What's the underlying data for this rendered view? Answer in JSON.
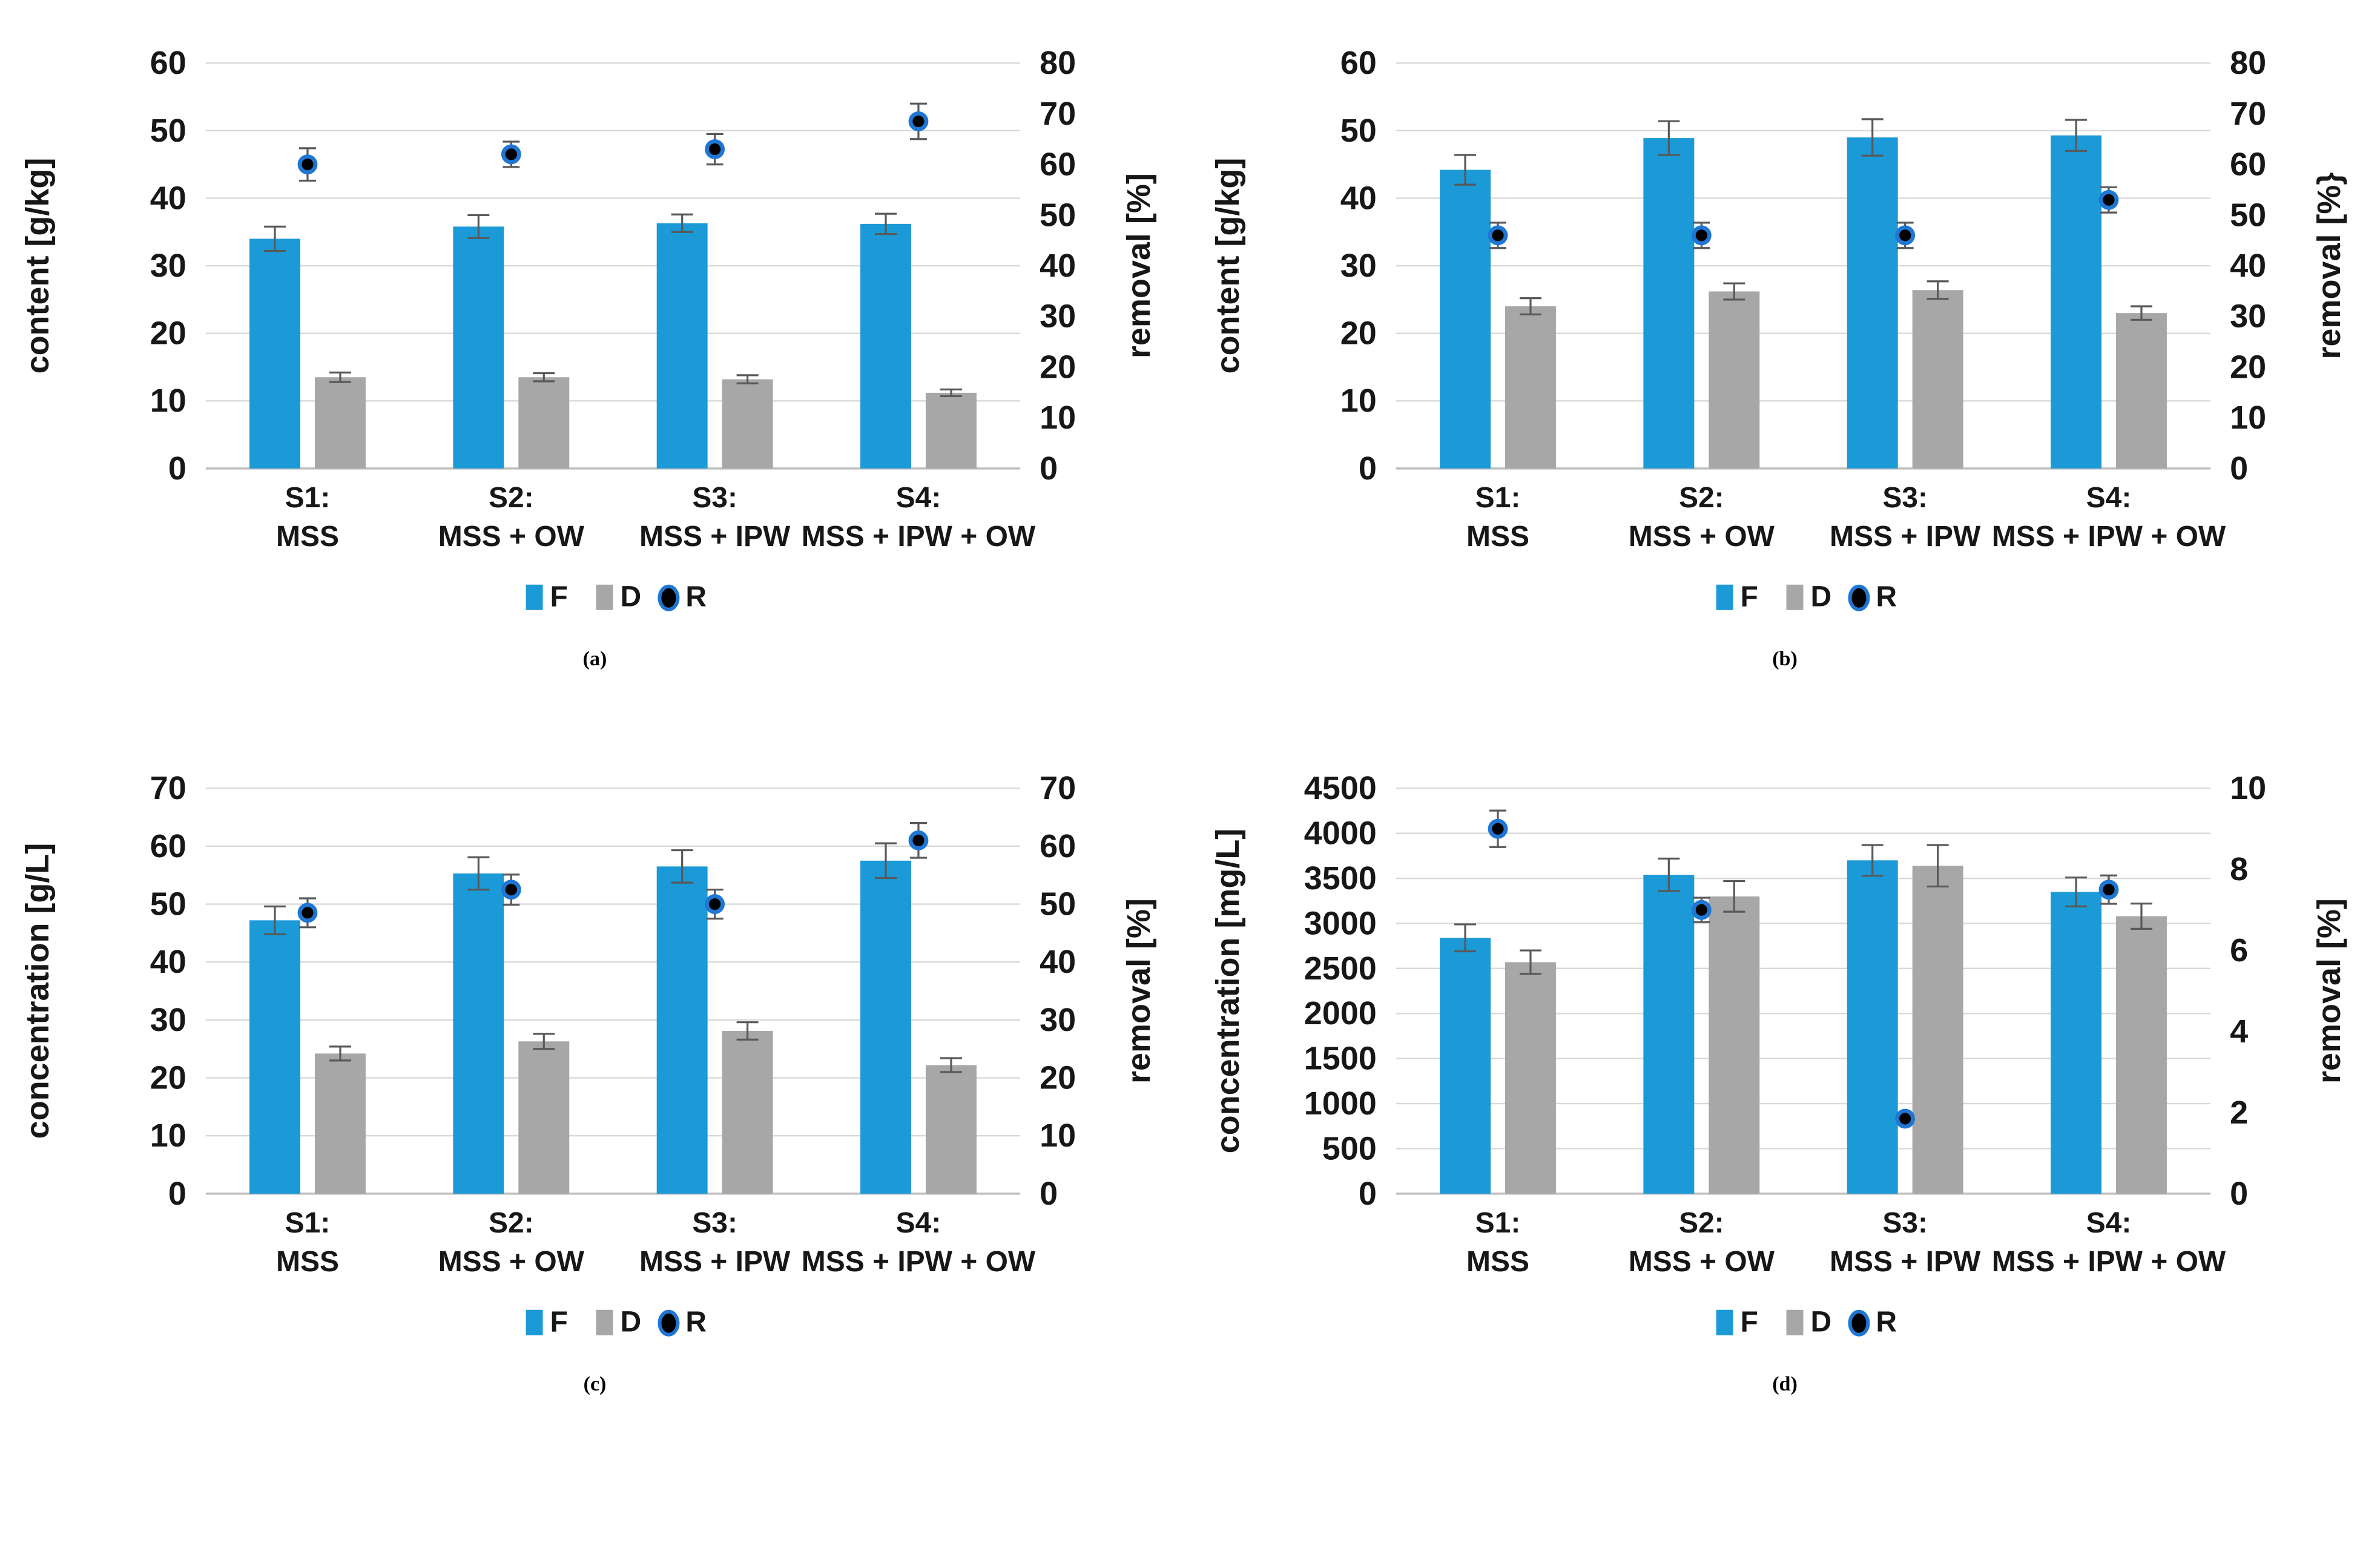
{
  "colors": {
    "bar_f": "#1B9AD7",
    "bar_d": "#A7A7A7",
    "dot_fill": "#000000",
    "dot_ring": "#1F76D3",
    "error_bar": "#595959",
    "gridline": "#D9D9D9",
    "baseline": "#BFBFBF",
    "text": "#171717"
  },
  "legend": {
    "items": [
      {
        "label": "F",
        "marker": "square-blue"
      },
      {
        "label": "D",
        "marker": "square-gray"
      },
      {
        "label": "R",
        "marker": "dot-black-blue-ring"
      }
    ]
  },
  "chart_data": [
    {
      "id": "a",
      "caption": "(a)",
      "type": "bar",
      "subtype": "grouped bars + scatter dots on secondary axis, with error bars",
      "categories": [
        "S1: MSS",
        "S2: MSS + OW",
        "S3: MSS + IPW",
        "S4: MSS + IPW + OW"
      ],
      "category_lines": [
        [
          "S1:",
          "MSS"
        ],
        [
          "S2:",
          "MSS + OW"
        ],
        [
          "S3:",
          "MSS + IPW"
        ],
        [
          "S4:",
          "MSS + IPW + OW"
        ]
      ],
      "left_axis": {
        "label": "content [g/kg]",
        "min": 0,
        "max": 60,
        "step": 10
      },
      "right_axis": {
        "label": "removal [%]",
        "min": 0,
        "max": 80,
        "step": 10
      },
      "series": [
        {
          "name": "F",
          "type": "bar",
          "axis": "left",
          "values": [
            34.0,
            35.8,
            36.3,
            36.2
          ],
          "errors": [
            1.8,
            1.7,
            1.3,
            1.5
          ]
        },
        {
          "name": "D",
          "type": "bar",
          "axis": "left",
          "values": [
            13.5,
            13.5,
            13.2,
            11.2
          ],
          "errors": [
            0.7,
            0.6,
            0.6,
            0.5
          ]
        },
        {
          "name": "R",
          "type": "scatter",
          "axis": "right",
          "values": [
            60.0,
            62.0,
            63.0,
            68.5
          ],
          "errors": [
            3.2,
            2.5,
            3.0,
            3.5
          ]
        }
      ]
    },
    {
      "id": "b",
      "caption": "(b)",
      "type": "bar",
      "subtype": "grouped bars + scatter dots on secondary axis, with error bars",
      "categories": [
        "S1: MSS",
        "S2: MSS + OW",
        "S3: MSS + IPW",
        "S4: MSS + IPW + OW"
      ],
      "category_lines": [
        [
          "S1:",
          "MSS"
        ],
        [
          "S2:",
          "MSS + OW"
        ],
        [
          "S3:",
          "MSS + IPW"
        ],
        [
          "S4:",
          "MSS + IPW + OW"
        ]
      ],
      "left_axis": {
        "label": "content [g/kg]",
        "min": 0,
        "max": 60,
        "step": 10
      },
      "right_axis": {
        "label": "removal [%}",
        "min": 0,
        "max": 80,
        "step": 10
      },
      "series": [
        {
          "name": "F",
          "type": "bar",
          "axis": "left",
          "values": [
            44.2,
            48.9,
            49.0,
            49.3
          ],
          "errors": [
            2.2,
            2.5,
            2.7,
            2.3
          ]
        },
        {
          "name": "D",
          "type": "bar",
          "axis": "left",
          "values": [
            24.0,
            26.2,
            26.4,
            23.0
          ],
          "errors": [
            1.2,
            1.2,
            1.3,
            1.0
          ]
        },
        {
          "name": "R",
          "type": "scatter",
          "axis": "right",
          "values": [
            46.0,
            46.0,
            46.0,
            53.0
          ],
          "errors": [
            2.5,
            2.5,
            2.5,
            2.5
          ]
        }
      ]
    },
    {
      "id": "c",
      "caption": "(c)",
      "type": "bar",
      "subtype": "grouped bars + scatter dots on secondary axis, with error bars",
      "categories": [
        "S1: MSS",
        "S2: MSS + OW",
        "S3: MSS + IPW",
        "S4: MSS + IPW + OW"
      ],
      "category_lines": [
        [
          "S1:",
          "MSS"
        ],
        [
          "S2:",
          "MSS + OW"
        ],
        [
          "S3:",
          "MSS + IPW"
        ],
        [
          "S4:",
          "MSS + IPW + OW"
        ]
      ],
      "left_axis": {
        "label": "concentration [g/L]",
        "min": 0,
        "max": 70,
        "step": 10
      },
      "right_axis": {
        "label": "removal [%]",
        "min": 0,
        "max": 70,
        "step": 10
      },
      "series": [
        {
          "name": "F",
          "type": "bar",
          "axis": "left",
          "values": [
            47.2,
            55.3,
            56.5,
            57.5
          ],
          "errors": [
            2.4,
            2.8,
            2.8,
            3.0
          ]
        },
        {
          "name": "D",
          "type": "bar",
          "axis": "left",
          "values": [
            24.2,
            26.3,
            28.1,
            22.2
          ],
          "errors": [
            1.2,
            1.3,
            1.5,
            1.2
          ]
        },
        {
          "name": "R",
          "type": "scatter",
          "axis": "right",
          "values": [
            48.5,
            52.5,
            50.0,
            61.0
          ],
          "errors": [
            2.5,
            2.6,
            2.5,
            3.0
          ]
        }
      ]
    },
    {
      "id": "d",
      "caption": "(d)",
      "type": "bar",
      "subtype": "grouped bars + scatter dots on secondary axis, with error bars",
      "categories": [
        "S1: MSS",
        "S2: MSS + OW",
        "S3: MSS + IPW",
        "S4: MSS + IPW + OW"
      ],
      "category_lines": [
        [
          "S1:",
          "MSS"
        ],
        [
          "S2:",
          "MSS + OW"
        ],
        [
          "S3:",
          "MSS + IPW"
        ],
        [
          "S4:",
          "MSS + IPW + OW"
        ]
      ],
      "left_axis": {
        "label": "concentration [mg/L]",
        "min": 0,
        "max": 4500,
        "step": 500
      },
      "right_axis": {
        "label": "removal [%]",
        "min": 0,
        "max": 10,
        "step": 2
      },
      "series": [
        {
          "name": "F",
          "type": "bar",
          "axis": "left",
          "values": [
            2840,
            3540,
            3700,
            3350
          ],
          "errors": [
            150,
            180,
            170,
            160
          ]
        },
        {
          "name": "D",
          "type": "bar",
          "axis": "left",
          "values": [
            2570,
            3300,
            3640,
            3080
          ],
          "errors": [
            130,
            170,
            230,
            140
          ]
        },
        {
          "name": "R",
          "type": "scatter",
          "axis": "right",
          "values": [
            9.0,
            7.0,
            1.85,
            7.5
          ],
          "errors": [
            0.45,
            0.3,
            0,
            0.35
          ]
        }
      ]
    }
  ]
}
